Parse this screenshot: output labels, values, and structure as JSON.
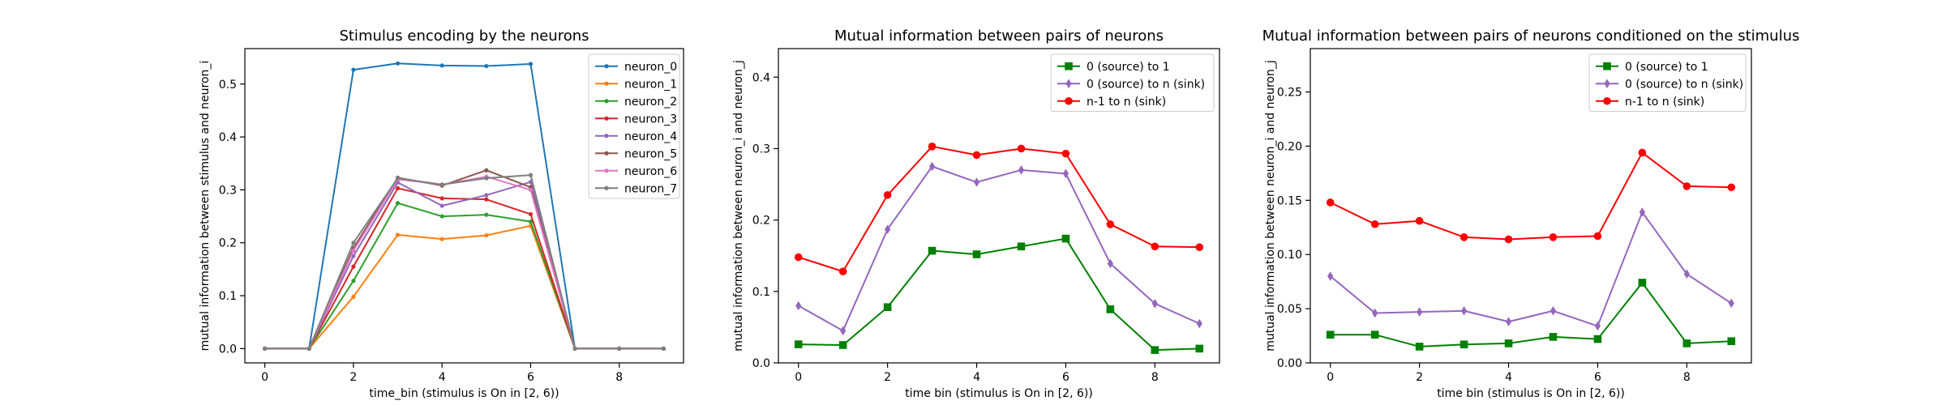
{
  "chart_data": [
    {
      "type": "line",
      "title": "Stimulus encoding by the neurons",
      "xlabel": "time_bin (stimulus is On in [2, 6))",
      "ylabel": "mutual information between stimulus and neuron_i",
      "xlim": [
        -0.45,
        9.45
      ],
      "ylim": [
        -0.027,
        0.567
      ],
      "xticks": [
        0,
        2,
        4,
        6,
        8
      ],
      "yticks": [
        0.0,
        0.1,
        0.2,
        0.3,
        0.4,
        0.5
      ],
      "xtick_labels": [
        "0",
        "2",
        "4",
        "6",
        "8"
      ],
      "ytick_labels": [
        "0.0",
        "0.1",
        "0.2",
        "0.3",
        "0.4",
        "0.5"
      ],
      "legend": "top-right",
      "x": [
        0,
        1,
        2,
        3,
        4,
        5,
        6,
        7,
        8,
        9
      ],
      "series": [
        {
          "name": "neuron_0",
          "color": "#1f77b4",
          "marker": "dot",
          "values": [
            0,
            0,
            0.527,
            0.539,
            0.535,
            0.534,
            0.538,
            0,
            0,
            0
          ]
        },
        {
          "name": "neuron_1",
          "color": "#ff7f0e",
          "marker": "dot",
          "values": [
            0,
            0,
            0.098,
            0.215,
            0.207,
            0.214,
            0.232,
            0,
            0,
            0
          ]
        },
        {
          "name": "neuron_2",
          "color": "#2ca02c",
          "marker": "dot",
          "values": [
            0,
            0,
            0.128,
            0.275,
            0.25,
            0.253,
            0.24,
            0,
            0,
            0
          ]
        },
        {
          "name": "neuron_3",
          "color": "#d62728",
          "marker": "dot",
          "values": [
            0,
            0,
            0.155,
            0.303,
            0.284,
            0.282,
            0.254,
            0,
            0,
            0
          ]
        },
        {
          "name": "neuron_4",
          "color": "#9467bd",
          "marker": "dot",
          "values": [
            0,
            0,
            0.175,
            0.314,
            0.27,
            0.29,
            0.315,
            0,
            0,
            0
          ]
        },
        {
          "name": "neuron_5",
          "color": "#8c564b",
          "marker": "dot",
          "values": [
            0,
            0,
            0.19,
            0.323,
            0.308,
            0.337,
            0.305,
            0,
            0,
            0
          ]
        },
        {
          "name": "neuron_6",
          "color": "#e377c2",
          "marker": "dot",
          "values": [
            0,
            0,
            0.185,
            0.32,
            0.31,
            0.325,
            0.3,
            0,
            0,
            0
          ]
        },
        {
          "name": "neuron_7",
          "color": "#7f7f7f",
          "marker": "dot",
          "values": [
            0,
            0,
            0.2,
            0.322,
            0.31,
            0.322,
            0.328,
            0,
            0,
            0
          ]
        }
      ]
    },
    {
      "type": "line",
      "title": "Mutual information between pairs of neurons",
      "xlabel": "time bin (stimulus is On in [2, 6))",
      "ylabel": "mutual information between neuron_i and neuron_j",
      "xlim": [
        -0.45,
        9.45
      ],
      "ylim": [
        0.0,
        0.44
      ],
      "xticks": [
        0,
        2,
        4,
        6,
        8
      ],
      "yticks": [
        0.0,
        0.1,
        0.2,
        0.3,
        0.4
      ],
      "xtick_labels": [
        "0",
        "2",
        "4",
        "6",
        "8"
      ],
      "ytick_labels": [
        "0.0",
        "0.1",
        "0.2",
        "0.3",
        "0.4"
      ],
      "legend": "top-right",
      "x": [
        0,
        1,
        2,
        3,
        4,
        5,
        6,
        7,
        8,
        9
      ],
      "series": [
        {
          "name": "0 (source) to 1",
          "color": "#008000",
          "marker": "square",
          "values": [
            0.026,
            0.025,
            0.078,
            0.157,
            0.152,
            0.163,
            0.174,
            0.075,
            0.018,
            0.02
          ]
        },
        {
          "name": "0 (source) to n (sink)",
          "color": "#9467bd",
          "marker": "diamond",
          "values": [
            0.08,
            0.045,
            0.187,
            0.275,
            0.253,
            0.27,
            0.265,
            0.139,
            0.083,
            0.055
          ]
        },
        {
          "name": "n-1 to n (sink)",
          "color": "#ff0000",
          "marker": "circle",
          "values": [
            0.148,
            0.128,
            0.235,
            0.303,
            0.291,
            0.3,
            0.293,
            0.194,
            0.163,
            0.162
          ]
        }
      ]
    },
    {
      "type": "line",
      "title": "Mutual information between pairs of neurons conditioned on the stimulus",
      "xlabel": "time bin (stimulus is On in [2, 6))",
      "ylabel": "mutual information between neuron_i and neuron_j",
      "xlim": [
        -0.45,
        9.45
      ],
      "ylim": [
        0.0,
        0.29
      ],
      "xticks": [
        0,
        2,
        4,
        6,
        8
      ],
      "yticks": [
        0.0,
        0.05,
        0.1,
        0.15,
        0.2,
        0.25
      ],
      "xtick_labels": [
        "0",
        "2",
        "4",
        "6",
        "8"
      ],
      "ytick_labels": [
        "0.00",
        "0.05",
        "0.10",
        "0.15",
        "0.20",
        "0.25"
      ],
      "legend": "top-right",
      "x": [
        0,
        1,
        2,
        3,
        4,
        5,
        6,
        7,
        8,
        9
      ],
      "series": [
        {
          "name": "0 (source) to 1",
          "color": "#008000",
          "marker": "square",
          "values": [
            0.026,
            0.026,
            0.015,
            0.017,
            0.018,
            0.024,
            0.022,
            0.074,
            0.018,
            0.02
          ]
        },
        {
          "name": "0 (source) to n (sink)",
          "color": "#9467bd",
          "marker": "diamond",
          "values": [
            0.08,
            0.046,
            0.047,
            0.048,
            0.038,
            0.048,
            0.034,
            0.139,
            0.082,
            0.055
          ]
        },
        {
          "name": "n-1 to n (sink)",
          "color": "#ff0000",
          "marker": "circle",
          "values": [
            0.148,
            0.128,
            0.131,
            0.116,
            0.114,
            0.116,
            0.117,
            0.194,
            0.163,
            0.162
          ]
        }
      ]
    }
  ]
}
